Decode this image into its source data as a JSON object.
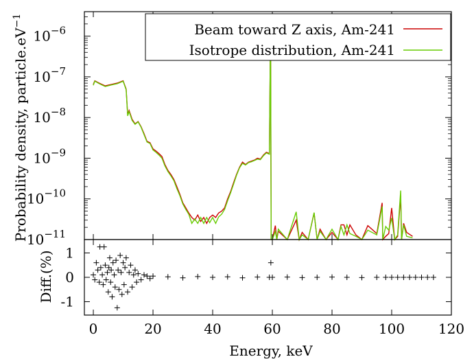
{
  "chart_data": [
    {
      "type": "line",
      "title": "",
      "xlabel": "",
      "ylabel": "Probability density, particle.eV",
      "ylabel_sup": "−1",
      "yscale": "log",
      "xlim": [
        -3,
        120
      ],
      "ylim": [
        1e-11,
        4e-06
      ],
      "y_ticks": [
        {
          "v": 1e-06,
          "base": "10",
          "exp": "−6"
        },
        {
          "v": 1e-07,
          "base": "10",
          "exp": "−7"
        },
        {
          "v": 1e-08,
          "base": "10",
          "exp": "−8"
        },
        {
          "v": 1e-09,
          "base": "10",
          "exp": "−9"
        },
        {
          "v": 1e-10,
          "base": "10",
          "exp": "−10"
        },
        {
          "v": 1e-11,
          "base": "10",
          "exp": "−11"
        }
      ],
      "legend_position": "top-right",
      "series": [
        {
          "name": "Beam toward Z axis, Am-241",
          "color": "#cc0000",
          "x": [
            0,
            0.5,
            2,
            4,
            6,
            8,
            10,
            11,
            11.5,
            12,
            13,
            14,
            15,
            16,
            17,
            18,
            19,
            20,
            21,
            22,
            23,
            24,
            25,
            26,
            27,
            28,
            29,
            30,
            31,
            32,
            33,
            34,
            35,
            36,
            37,
            38,
            39,
            40,
            41,
            42,
            43,
            44,
            45,
            46,
            47,
            48,
            49,
            50,
            51,
            52,
            53,
            54,
            55,
            56,
            57,
            58,
            59,
            59.4,
            59.6,
            60,
            61,
            61.5,
            62,
            65,
            68,
            69,
            70,
            72,
            74,
            75,
            76,
            78,
            80,
            82,
            83,
            84,
            85,
            86,
            88,
            90,
            92,
            95,
            96.8,
            97,
            98,
            99,
            100,
            101,
            102,
            103,
            103.3,
            104,
            105,
            107
          ],
          "y": [
            6.5e-08,
            8e-08,
            7e-08,
            6e-08,
            6.5e-08,
            7e-08,
            8e-08,
            5e-08,
            1.2e-08,
            1.5e-08,
            9e-09,
            7e-09,
            8e-09,
            6e-09,
            4e-09,
            2.6e-09,
            2.4e-09,
            1.7e-09,
            1.5e-09,
            1.3e-09,
            1.1e-09,
            7e-10,
            5e-10,
            4e-10,
            3e-10,
            2e-10,
            1.3e-10,
            8e-11,
            6e-11,
            4.5e-11,
            3.5e-11,
            3e-11,
            4e-11,
            2.8e-11,
            3.5e-11,
            2.5e-11,
            3.5e-11,
            4e-11,
            3.5e-11,
            4.5e-11,
            5e-11,
            6e-11,
            1e-10,
            1.5e-10,
            2.5e-10,
            4e-10,
            6e-10,
            8e-10,
            7e-10,
            8e-10,
            8.5e-10,
            9e-10,
            1e-09,
            9.5e-10,
            1.2e-09,
            1.4e-09,
            1.3e-09,
            2e-06,
            1e-11,
            1e-11,
            2.2e-11,
            1e-11,
            1.6e-11,
            1e-11,
            3e-11,
            1e-11,
            1.5e-11,
            1e-11,
            4.5e-11,
            1e-11,
            1.8e-11,
            1e-11,
            1.5e-11,
            1e-11,
            2.3e-11,
            2.3e-11,
            1.3e-11,
            2.3e-11,
            1.3e-11,
            1e-11,
            2.2e-11,
            1.4e-11,
            8e-11,
            1e-11,
            1.2e-11,
            1.4e-11,
            6e-11,
            1e-11,
            1.2e-11,
            1.2e-10,
            1e-11,
            2.5e-11,
            1.5e-11,
            1.2e-11
          ]
        },
        {
          "name": "Isotrope distribution, Am-241",
          "color": "#66cc00",
          "x": [
            0,
            0.5,
            2,
            4,
            6,
            8,
            10,
            11,
            11.5,
            12,
            13,
            14,
            15,
            16,
            17,
            18,
            19,
            20,
            21,
            22,
            23,
            24,
            25,
            26,
            27,
            28,
            29,
            30,
            31,
            32,
            33,
            34,
            35,
            36,
            37,
            38,
            39,
            40,
            41,
            42,
            43,
            44,
            45,
            46,
            47,
            48,
            49,
            50,
            51,
            52,
            53,
            54,
            55,
            56,
            57,
            58,
            59,
            59.4,
            59.6,
            60,
            61,
            61.5,
            62,
            65,
            68,
            69,
            70,
            72,
            74,
            75,
            76,
            78,
            80,
            82,
            83,
            84,
            85,
            86,
            88,
            90,
            92,
            95,
            96.8,
            97,
            98,
            99,
            100,
            101,
            102,
            103,
            103.3,
            104,
            105,
            107
          ],
          "y": [
            6.2e-08,
            7.8e-08,
            6.8e-08,
            5.8e-08,
            6.3e-08,
            6.8e-08,
            7.8e-08,
            4.8e-08,
            1.1e-08,
            1.4e-08,
            8.5e-09,
            6.8e-09,
            7.8e-09,
            5.8e-09,
            3.8e-09,
            2.5e-09,
            2.3e-09,
            1.6e-09,
            1.4e-09,
            1.2e-09,
            1e-09,
            6.5e-10,
            4.7e-10,
            3.7e-10,
            2.8e-10,
            1.8e-10,
            1.2e-10,
            7.5e-11,
            5.5e-11,
            4.2e-11,
            2.5e-11,
            3.2e-11,
            2.5e-11,
            3.5e-11,
            2.5e-11,
            3.5e-11,
            2.6e-11,
            3.5e-11,
            2.5e-11,
            3.6e-11,
            4.2e-11,
            5.5e-11,
            9e-11,
            1.4e-10,
            2.3e-10,
            3.8e-10,
            5.8e-10,
            7.5e-10,
            6.8e-10,
            7.8e-10,
            8.2e-10,
            8.8e-10,
            9.5e-10,
            9.2e-10,
            1.15e-09,
            1.35e-09,
            1.25e-09,
            1.9e-06,
            1e-11,
            1e-11,
            1.6e-11,
            1e-11,
            1.8e-11,
            1e-11,
            4.8e-11,
            1e-11,
            1.3e-11,
            1e-11,
            4.6e-11,
            1e-11,
            1.6e-11,
            1e-11,
            1.8e-11,
            1e-11,
            2.1e-11,
            1.3e-11,
            2.3e-11,
            1.4e-11,
            1.2e-11,
            1e-11,
            1.7e-11,
            1.3e-11,
            6.5e-11,
            1e-11,
            2.1e-11,
            1.7e-11,
            3.4e-11,
            1e-11,
            1.3e-11,
            1.6e-10,
            1e-11,
            2.3e-11,
            1.2e-11,
            1.1e-11
          ]
        }
      ]
    },
    {
      "type": "scatter",
      "title": "",
      "xlabel": "Energy, keV",
      "ylabel": "Diff.(%)",
      "xlim": [
        -3,
        120
      ],
      "ylim": [
        -1.55,
        1.55
      ],
      "x_ticks": [
        0,
        20,
        40,
        60,
        80,
        100,
        120
      ],
      "y_ticks": [
        1,
        0,
        -1
      ],
      "y_tick_labels": [
        "1",
        "0",
        "-1"
      ],
      "marker": "+",
      "series": [
        {
          "x": [
            0,
            0.5,
            1,
            1.5,
            2,
            2.2,
            2.5,
            3,
            3.3,
            3.6,
            4,
            4.3,
            4.7,
            5,
            5.2,
            5.5,
            5.8,
            6,
            6.3,
            6.6,
            7,
            7.3,
            7.6,
            8,
            8.3,
            8.6,
            9,
            9.3,
            9.6,
            10,
            10.3,
            10.6,
            11,
            11.5,
            12,
            12.5,
            13,
            13.5,
            14,
            14.5,
            15,
            16,
            17,
            18,
            19,
            20,
            25,
            30,
            35,
            40,
            45,
            50,
            55,
            59,
            59.5,
            60,
            65,
            70,
            75,
            80,
            85,
            90,
            95,
            98,
            100,
            102,
            104,
            106,
            108,
            110,
            112,
            114
          ],
          "y": [
            0.1,
            -0.1,
            0.6,
            0.3,
            -0.2,
            1.25,
            0.4,
            0.1,
            -0.3,
            1.25,
            0.5,
            -0.1,
            0.2,
            -0.6,
            0.4,
            0.8,
            -0.2,
            0.3,
            -0.8,
            0.6,
            0.1,
            -0.4,
            0.7,
            -1.25,
            0.3,
            -0.5,
            0.9,
            0.2,
            -0.7,
            0.6,
            -0.3,
            0.4,
            0.8,
            -0.6,
            0.2,
            0.5,
            -0.4,
            0.1,
            0.3,
            -0.2,
            0.15,
            -0.1,
            0.1,
            0.05,
            -0.05,
            0.05,
            0.02,
            -0.02,
            0.03,
            0,
            0.02,
            -0.02,
            0.01,
            0,
            0.6,
            0,
            0.01,
            -0.01,
            0,
            0.01,
            0,
            -0.01,
            0,
            0,
            0,
            0,
            0,
            0,
            0,
            0,
            0,
            0
          ]
        }
      ]
    }
  ]
}
